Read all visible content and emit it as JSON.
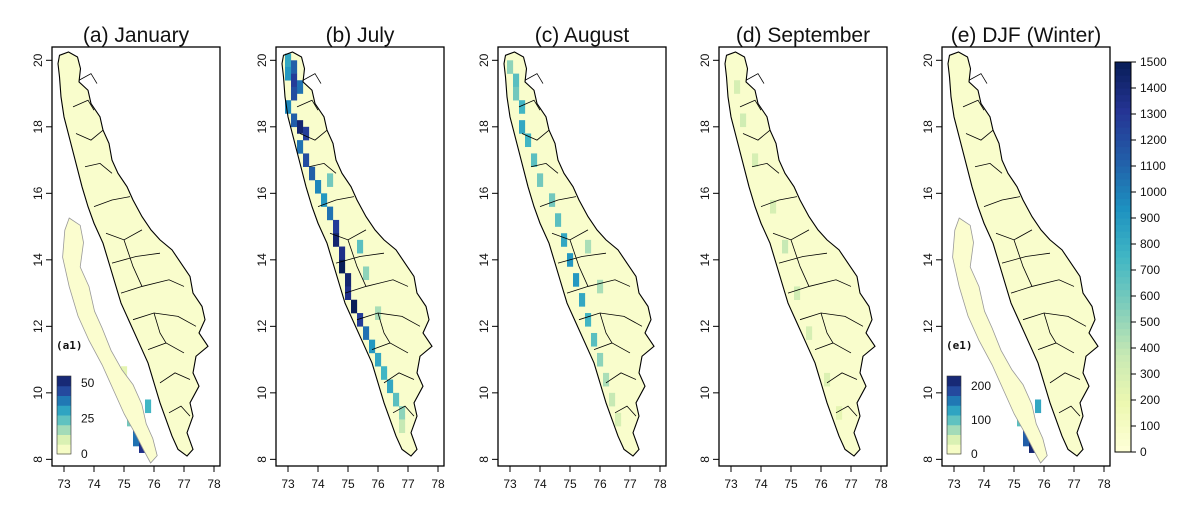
{
  "chart_data": {
    "type": "heatmap",
    "axes": {
      "x_ticks": [
        73,
        74,
        75,
        76,
        77,
        78
      ],
      "y_ticks": [
        8,
        10,
        12,
        14,
        16,
        18,
        20
      ],
      "xlim": [
        72.6,
        78.2
      ],
      "ylim": [
        7.8,
        20.4
      ]
    },
    "colorbar": {
      "min": 0,
      "max": 1500,
      "ticks": [
        0,
        100,
        200,
        300,
        400,
        500,
        600,
        700,
        800,
        900,
        1000,
        1100,
        1200,
        1300,
        1400,
        1500
      ],
      "colors": [
        "#ffffd9",
        "#edf8b1",
        "#c7e9b4",
        "#7fcdbb",
        "#41b6c4",
        "#1d91c0",
        "#225ea8",
        "#253494",
        "#081d58"
      ]
    },
    "panels": [
      {
        "title": "(a) January",
        "inset": {
          "tag": "(a1)",
          "ticks": [
            0,
            25,
            50
          ],
          "max": 55
        },
        "cells": [
          [
            75.2,
            9.6,
            0.45
          ],
          [
            75.4,
            9.4,
            0.6
          ],
          [
            75.4,
            9.0,
            0.75
          ],
          [
            75.6,
            8.8,
            0.85
          ],
          [
            75.4,
            8.6,
            0.7
          ],
          [
            75.6,
            8.4,
            0.9
          ],
          [
            75.2,
            9.2,
            0.4
          ],
          [
            75.0,
            9.8,
            0.3
          ],
          [
            75.6,
            9.0,
            0.95
          ],
          [
            75.8,
            9.6,
            0.5
          ],
          [
            74.8,
            10.2,
            0.2
          ],
          [
            75.0,
            10.6,
            0.15
          ]
        ]
      },
      {
        "title": "(b) July",
        "cells": [
          [
            73.0,
            20.0,
            0.55
          ],
          [
            73.2,
            19.8,
            0.75
          ],
          [
            73.0,
            19.6,
            0.6
          ],
          [
            73.2,
            19.4,
            0.85
          ],
          [
            73.4,
            19.2,
            0.7
          ],
          [
            73.2,
            19.0,
            0.8
          ],
          [
            73.0,
            18.6,
            0.65
          ],
          [
            73.2,
            18.2,
            0.75
          ],
          [
            73.4,
            18.0,
            0.95
          ],
          [
            73.6,
            17.8,
            0.85
          ],
          [
            73.4,
            17.4,
            0.7
          ],
          [
            73.6,
            17.0,
            0.8
          ],
          [
            73.8,
            16.6,
            0.75
          ],
          [
            74.0,
            16.2,
            0.65
          ],
          [
            74.2,
            15.8,
            0.6
          ],
          [
            74.4,
            15.4,
            0.7
          ],
          [
            74.6,
            15.0,
            0.85
          ],
          [
            74.6,
            14.6,
            0.95
          ],
          [
            74.8,
            14.2,
            0.9
          ],
          [
            74.8,
            13.8,
            1.0
          ],
          [
            75.0,
            13.4,
            0.95
          ],
          [
            75.0,
            13.0,
            0.9
          ],
          [
            75.2,
            12.6,
            1.0
          ],
          [
            75.4,
            12.2,
            0.85
          ],
          [
            75.6,
            11.8,
            0.7
          ],
          [
            75.8,
            11.4,
            0.6
          ],
          [
            76.0,
            11.0,
            0.55
          ],
          [
            76.2,
            10.6,
            0.5
          ],
          [
            76.4,
            10.2,
            0.55
          ],
          [
            76.6,
            9.8,
            0.45
          ],
          [
            76.8,
            9.4,
            0.35
          ],
          [
            76.8,
            9.0,
            0.25
          ],
          [
            75.4,
            14.4,
            0.45
          ],
          [
            75.6,
            13.6,
            0.35
          ],
          [
            76.0,
            12.4,
            0.3
          ],
          [
            74.4,
            16.4,
            0.4
          ]
        ]
      },
      {
        "title": "(c) August",
        "cells": [
          [
            73.0,
            19.8,
            0.35
          ],
          [
            73.2,
            19.4,
            0.45
          ],
          [
            73.2,
            19.0,
            0.4
          ],
          [
            73.4,
            18.6,
            0.5
          ],
          [
            73.4,
            18.0,
            0.55
          ],
          [
            73.6,
            17.6,
            0.5
          ],
          [
            73.8,
            17.0,
            0.45
          ],
          [
            74.0,
            16.4,
            0.4
          ],
          [
            74.4,
            15.8,
            0.4
          ],
          [
            74.6,
            15.2,
            0.45
          ],
          [
            74.8,
            14.6,
            0.55
          ],
          [
            75.0,
            14.0,
            0.6
          ],
          [
            75.2,
            13.4,
            0.6
          ],
          [
            75.4,
            12.8,
            0.55
          ],
          [
            75.6,
            12.2,
            0.5
          ],
          [
            75.8,
            11.6,
            0.45
          ],
          [
            76.0,
            11.0,
            0.35
          ],
          [
            76.2,
            10.4,
            0.3
          ],
          [
            76.4,
            9.8,
            0.25
          ],
          [
            76.6,
            9.2,
            0.2
          ],
          [
            75.6,
            14.4,
            0.3
          ],
          [
            76.0,
            13.2,
            0.3
          ]
        ]
      },
      {
        "title": "(d) September",
        "cells": [
          [
            73.2,
            19.2,
            0.2
          ],
          [
            73.4,
            18.2,
            0.22
          ],
          [
            73.8,
            17.0,
            0.2
          ],
          [
            74.4,
            15.6,
            0.2
          ],
          [
            74.8,
            14.4,
            0.25
          ],
          [
            75.2,
            13.0,
            0.22
          ],
          [
            75.6,
            11.8,
            0.2
          ],
          [
            76.2,
            10.4,
            0.18
          ],
          [
            76.6,
            9.4,
            0.15
          ]
        ]
      },
      {
        "title": "(e) DJF (Winter)",
        "inset": {
          "tag": "(e1)",
          "ticks": [
            0,
            100,
            200
          ],
          "max": 230
        },
        "cells": [
          [
            75.2,
            9.6,
            0.5
          ],
          [
            75.4,
            9.4,
            0.65
          ],
          [
            75.4,
            9.0,
            0.8
          ],
          [
            75.6,
            8.8,
            0.9
          ],
          [
            75.4,
            8.6,
            0.75
          ],
          [
            75.6,
            8.4,
            0.95
          ],
          [
            75.2,
            9.2,
            0.45
          ],
          [
            75.0,
            9.8,
            0.35
          ],
          [
            75.6,
            9.0,
            1.0
          ],
          [
            75.8,
            9.6,
            0.55
          ],
          [
            74.8,
            10.2,
            0.25
          ]
        ]
      }
    ]
  }
}
